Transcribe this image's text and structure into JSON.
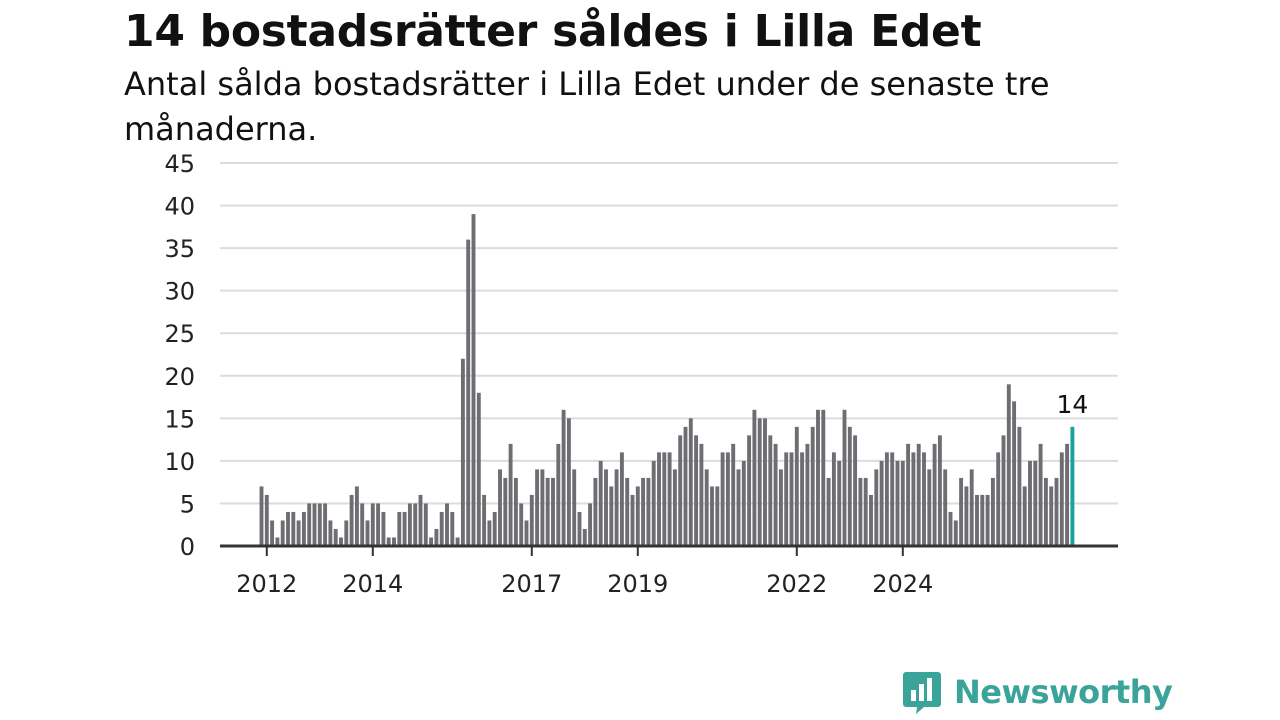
{
  "title": "14 bostadsrätter såldes i Lilla Edet",
  "subtitle": "Antal sålda bostadsrätter i Lilla Edet under de senaste tre månaderna.",
  "brand": {
    "name": "Newsworthy",
    "icon": "newsworthy-logo-icon",
    "color": "#3aa39a"
  },
  "chart_data": {
    "type": "bar",
    "x_ticks": [
      "2012",
      "2014",
      "2017",
      "2019",
      "2022",
      "2024"
    ],
    "x_tick_bar_index": [
      1,
      21,
      51,
      71,
      101,
      121
    ],
    "y_ticks": [
      0,
      5,
      10,
      15,
      20,
      25,
      30,
      35,
      40,
      45
    ],
    "ylim": [
      0,
      45
    ],
    "values": [
      7,
      6,
      3,
      1,
      3,
      4,
      4,
      3,
      4,
      5,
      5,
      5,
      5,
      3,
      2,
      1,
      3,
      6,
      7,
      5,
      3,
      5,
      5,
      4,
      1,
      1,
      4,
      4,
      5,
      5,
      6,
      5,
      1,
      2,
      4,
      5,
      4,
      1,
      22,
      36,
      39,
      18,
      6,
      3,
      4,
      9,
      8,
      12,
      8,
      5,
      3,
      6,
      9,
      9,
      8,
      8,
      12,
      16,
      15,
      9,
      4,
      2,
      5,
      8,
      10,
      9,
      7,
      9,
      11,
      8,
      6,
      7,
      8,
      8,
      10,
      11,
      11,
      11,
      9,
      13,
      14,
      15,
      13,
      12,
      9,
      7,
      7,
      11,
      11,
      12,
      9,
      10,
      13,
      16,
      15,
      15,
      13,
      12,
      9,
      11,
      11,
      14,
      11,
      12,
      14,
      16,
      16,
      8,
      11,
      10,
      16,
      14,
      13,
      8,
      8,
      6,
      9,
      10,
      11,
      11,
      10,
      10,
      12,
      11,
      12,
      11,
      9,
      12,
      13,
      9,
      4,
      3,
      8,
      7,
      9,
      6,
      6,
      6,
      8,
      11,
      13,
      19,
      17,
      14,
      7,
      10,
      10,
      12,
      8,
      7,
      8,
      11,
      12,
      14
    ],
    "highlight_last": true,
    "highlight_label": "14",
    "colors": {
      "bar": "#6e6d72",
      "highlight": "#1aa39a",
      "grid": "#dcdcdc",
      "axis": "#333333"
    },
    "grid": true
  }
}
